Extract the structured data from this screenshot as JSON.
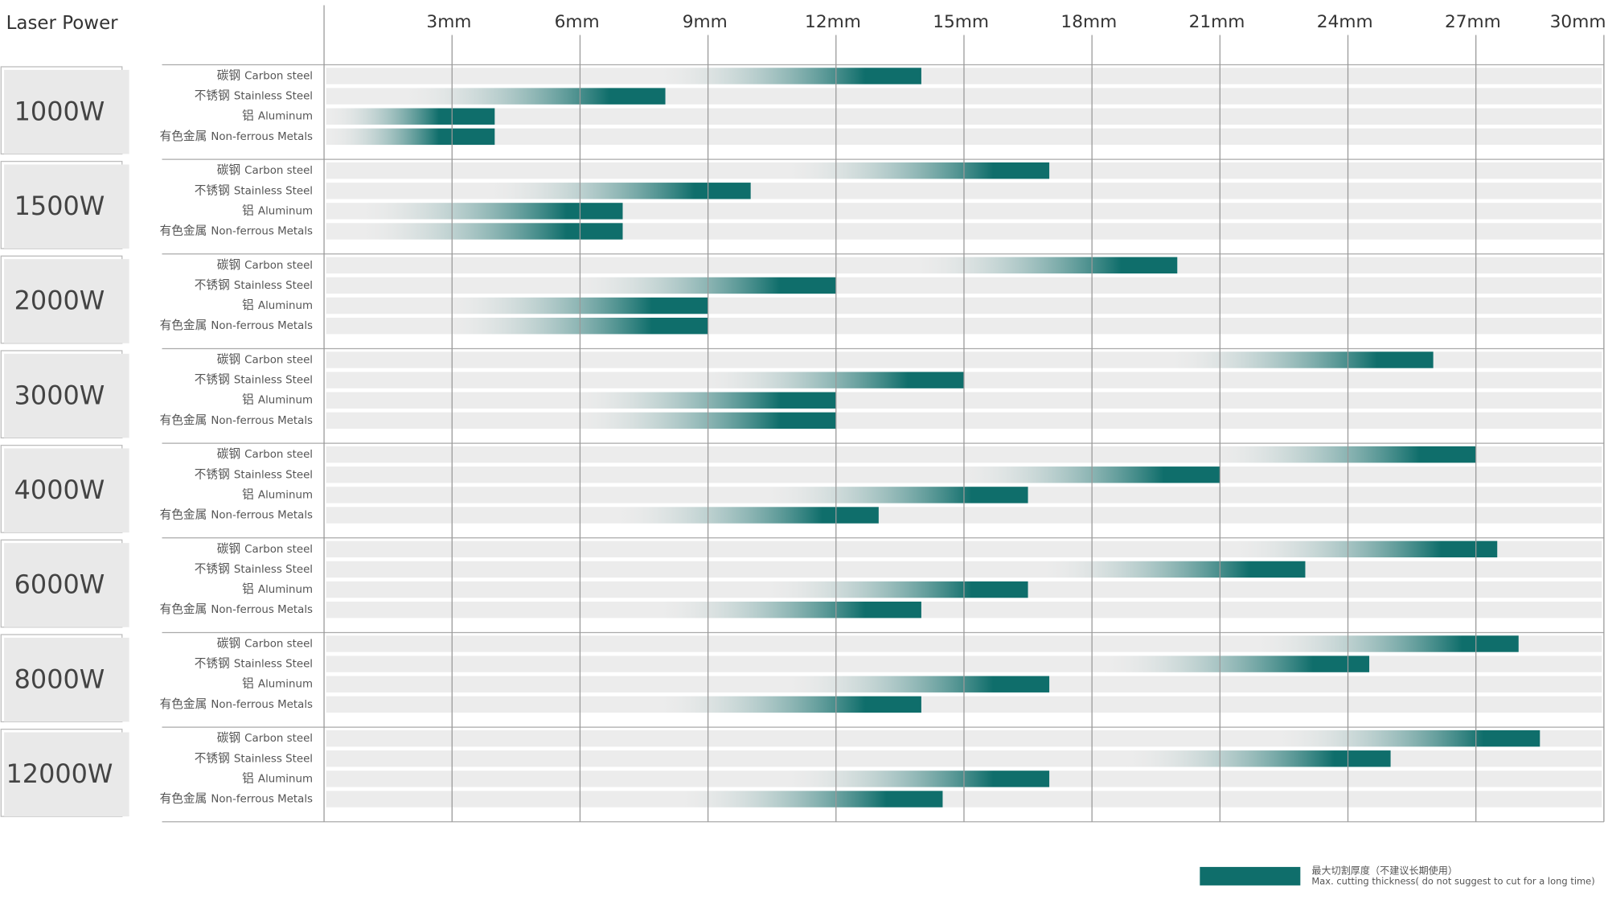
{
  "chart_data": {
    "type": "grouped-hbar",
    "title": "Laser Power",
    "categories": [
      "1000W",
      "1500W",
      "2000W",
      "3000W",
      "4000W",
      "6000W",
      "8000W",
      "12000W"
    ],
    "color": "#0f6e6b",
    "series": [
      {
        "name": "Carbon steel",
        "name_zh": "碳钢",
        "values": [
          14,
          17,
          20,
          26,
          27,
          27.5,
          28,
          28.5
        ]
      },
      {
        "name": "Stainless Steel",
        "name_zh": "不锈钢",
        "values": [
          8,
          10,
          12,
          15,
          21,
          23,
          24.5,
          25
        ]
      },
      {
        "name": "Aluminum",
        "name_zh": "铝",
        "values": [
          4,
          7,
          9,
          12,
          16.5,
          16.5,
          17,
          17
        ]
      },
      {
        "name": "Non-ferrous Metals",
        "name_zh": "有色金属",
        "values": [
          4,
          7,
          9,
          12,
          13,
          14,
          14,
          14.5
        ]
      }
    ],
    "xlim": [
      0,
      30
    ],
    "xticks": [
      {
        "value": 3,
        "label": "3mm"
      },
      {
        "value": 6,
        "label": "6mm"
      },
      {
        "value": 9,
        "label": "9mm"
      },
      {
        "value": 12,
        "label": "12mm"
      },
      {
        "value": 15,
        "label": "15mm"
      },
      {
        "value": 18,
        "label": "18mm"
      },
      {
        "value": 21,
        "label": "21mm"
      },
      {
        "value": 24,
        "label": "24mm"
      },
      {
        "value": 27,
        "label": "27mm"
      },
      {
        "value": 30,
        "label": "30mm"
      }
    ],
    "grid": true,
    "legend": {
      "label_zh": "最大切割厚度（不建议长期使用）",
      "label_en": "Max. cutting thickness( do not suggest to cut for a long time)"
    }
  }
}
